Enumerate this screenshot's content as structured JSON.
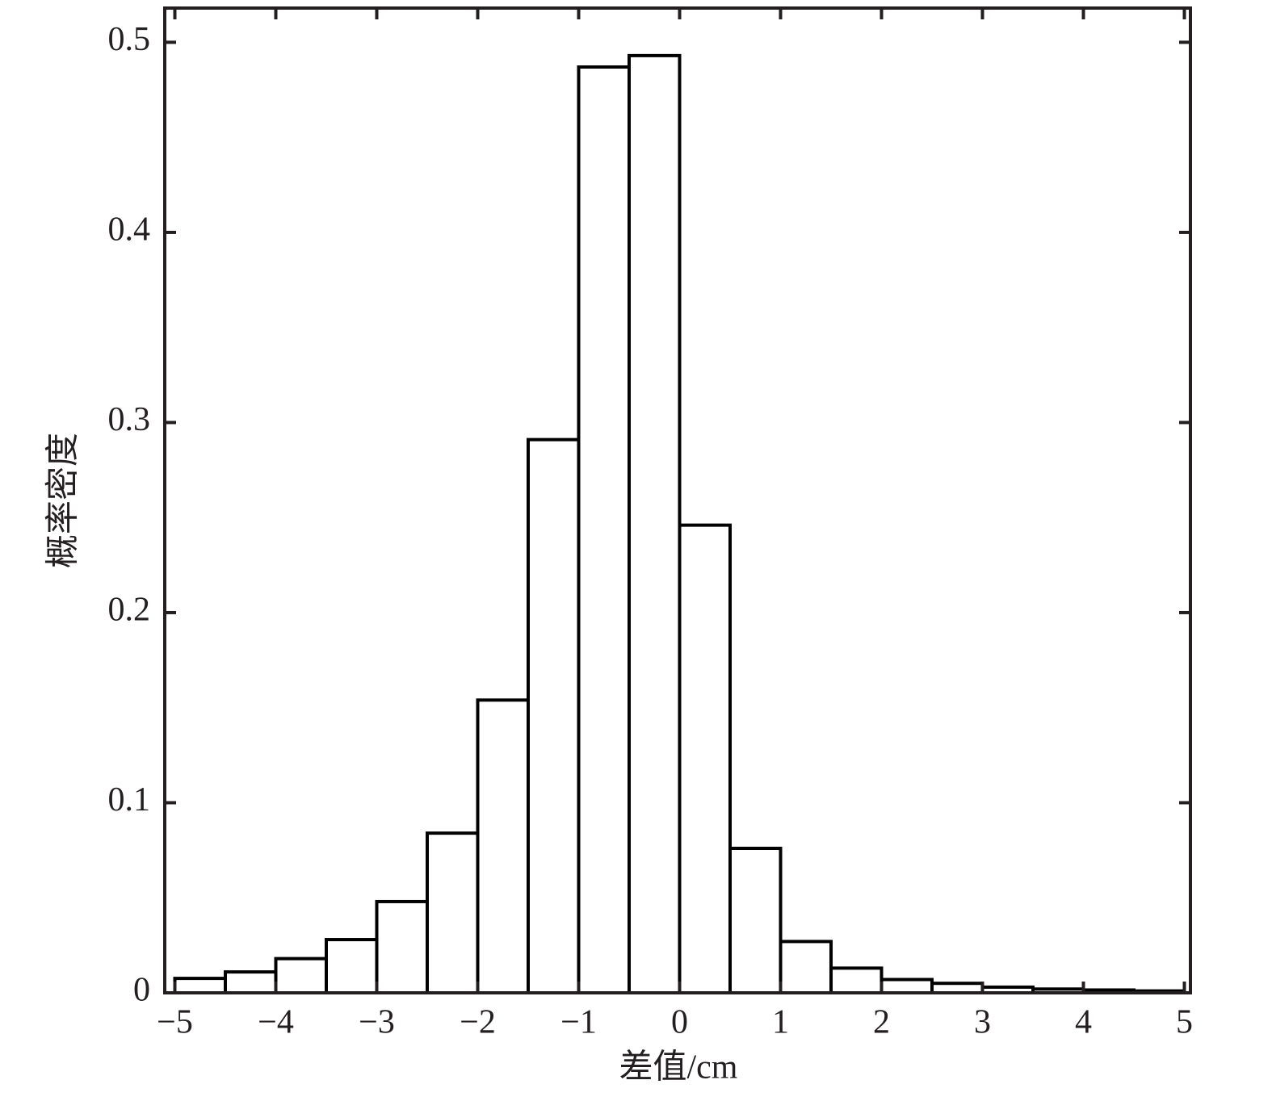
{
  "chart_data": {
    "type": "histogram",
    "x_label": "差值/cm",
    "y_label": "概率密度",
    "bins": [
      -5,
      -4.5,
      -4,
      -3.5,
      -3,
      -2.5,
      -2,
      -1.5,
      -1,
      -0.5,
      0,
      0.5,
      1,
      1.5,
      2,
      2.5,
      3,
      3.5,
      4,
      4.5,
      5
    ],
    "values": [
      0.0076,
      0.011,
      0.018,
      0.028,
      0.048,
      0.084,
      0.154,
      0.291,
      0.487,
      0.493,
      0.246,
      0.076,
      0.027,
      0.013,
      0.007,
      0.005,
      0.003,
      0.002,
      0.0015,
      0.001
    ],
    "color": "#ffffff",
    "edge_color": "#000000",
    "xlim": [
      -5.1,
      5.06
    ],
    "ylim": [
      0,
      0.518
    ],
    "xticks": [
      {
        "value": -5,
        "label": "−5"
      },
      {
        "value": -4,
        "label": "−4"
      },
      {
        "value": -3,
        "label": "−3"
      },
      {
        "value": -2,
        "label": "−2"
      },
      {
        "value": -1,
        "label": "−1"
      },
      0,
      1,
      2,
      3,
      4,
      5
    ],
    "yticks": [
      0,
      0.1,
      0.2,
      0.3,
      0.4,
      0.5
    ],
    "grid": false
  }
}
